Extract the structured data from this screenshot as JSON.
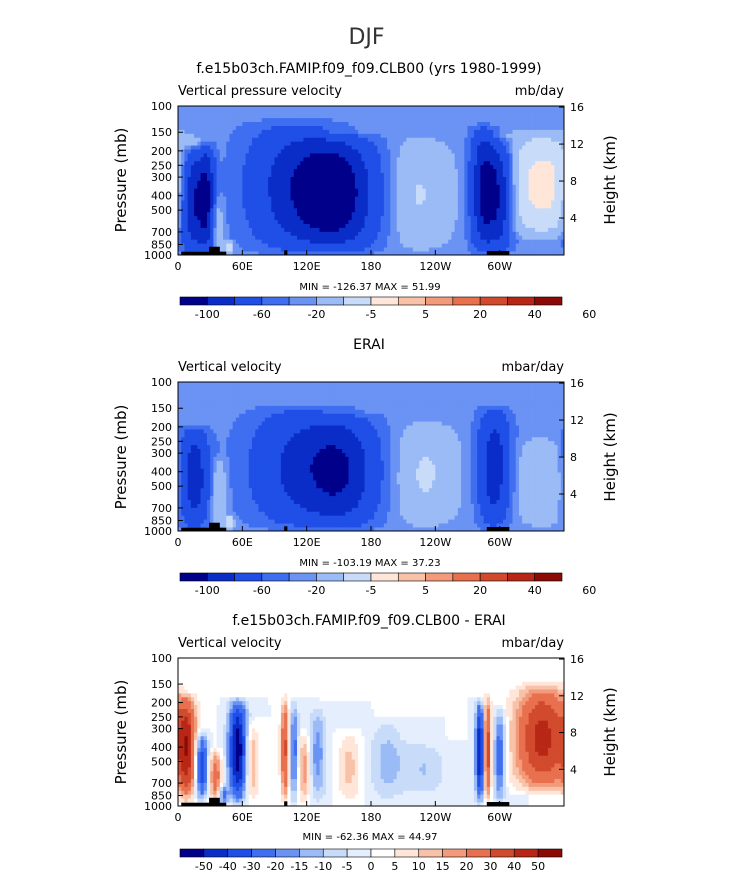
{
  "figure_title": "DJF",
  "chart_data": [
    {
      "type": "heatmap",
      "title": "f.e15b03ch.FAMIP.f09_f09.CLB00 (yrs 1980-1999)",
      "left_label": "Vertical pressure velocity",
      "right_label": "mb/day",
      "ylabel": "Pressure (mb)",
      "y2label": "Height (km)",
      "y_ticks": [
        100,
        150,
        200,
        250,
        300,
        400,
        500,
        700,
        850,
        1000
      ],
      "y2_ticks": [
        4,
        8,
        12,
        16
      ],
      "x_ticks": [
        "0",
        "60E",
        "120E",
        "180",
        "120W",
        "60W"
      ],
      "x_tick_values": [
        0,
        60,
        120,
        180,
        240,
        300
      ],
      "xlim": [
        0,
        360
      ],
      "ylim": [
        1000,
        100
      ],
      "y_scale": "log",
      "stats": "MIN = -126.37   MAX =  51.99",
      "colorbar_labels": [
        "-100",
        "-60",
        "-20",
        "-5",
        "5",
        "20",
        "40",
        "60"
      ],
      "colorbar_colors": [
        "#00008b",
        "#0a2dc8",
        "#1f4fe6",
        "#3f6ff0",
        "#6a93f4",
        "#9bbbf6",
        "#c8dcfa",
        "#ffe6d8",
        "#f8c2a8",
        "#f29a7a",
        "#e8704e",
        "#d24a2e",
        "#b82716",
        "#8c0a06"
      ],
      "features": [
        {
          "lon": 15,
          "amp": -110,
          "width": 8,
          "base": 1000,
          "top": 180
        },
        {
          "lon": 27,
          "amp": -90,
          "width": 5,
          "base": 1000,
          "top": 170
        },
        {
          "lon": 36,
          "amp": 25,
          "width": 4,
          "base": 1000,
          "top": 380
        },
        {
          "lon": 47,
          "amp": 40,
          "width": 3,
          "base": 1000,
          "top": 780
        },
        {
          "lon": 110,
          "amp": -80,
          "width": 30,
          "base": 1000,
          "top": 120
        },
        {
          "lon": 150,
          "amp": -110,
          "width": 25,
          "base": 1000,
          "top": 150
        },
        {
          "lon": 222,
          "amp": 22,
          "width": 24,
          "base": 1000,
          "top": 150
        },
        {
          "lon": 285,
          "amp": -110,
          "width": 8,
          "base": 1000,
          "top": 130
        },
        {
          "lon": 300,
          "amp": -90,
          "width": 8,
          "base": 1000,
          "top": 160
        },
        {
          "lon": 340,
          "amp": 48,
          "width": 24,
          "base": 800,
          "top": 140
        }
      ],
      "topography": [
        {
          "lon0": 3,
          "lon1": 45,
          "p": 950
        },
        {
          "lon0": 29,
          "lon1": 39,
          "p": 880
        },
        {
          "lon0": 99,
          "lon1": 102,
          "p": 930
        },
        {
          "lon0": 288,
          "lon1": 309,
          "p": 940
        }
      ]
    },
    {
      "type": "heatmap",
      "title": "ERAI",
      "left_label": "Vertical velocity",
      "right_label": "mbar/day",
      "ylabel": "Pressure (mb)",
      "y2label": "Height (km)",
      "y_ticks": [
        100,
        150,
        200,
        250,
        300,
        400,
        500,
        700,
        850,
        1000
      ],
      "y2_ticks": [
        4,
        8,
        12,
        16
      ],
      "x_ticks": [
        "0",
        "60E",
        "120E",
        "180",
        "120W",
        "60W"
      ],
      "x_tick_values": [
        0,
        60,
        120,
        180,
        240,
        300
      ],
      "xlim": [
        0,
        360
      ],
      "ylim": [
        1000,
        100
      ],
      "y_scale": "log",
      "stats": "MIN = -103.19   MAX =  37.23",
      "colorbar_labels": [
        "-100",
        "-60",
        "-20",
        "-5",
        "5",
        "20",
        "40",
        "60"
      ],
      "colorbar_colors": [
        "#00008b",
        "#0a2dc8",
        "#1f4fe6",
        "#3f6ff0",
        "#6a93f4",
        "#9bbbf6",
        "#c8dcfa",
        "#ffe6d8",
        "#f8c2a8",
        "#f29a7a",
        "#e8704e",
        "#d24a2e",
        "#b82716",
        "#8c0a06"
      ],
      "features": [
        {
          "lon": 15,
          "amp": -90,
          "width": 9,
          "base": 1000,
          "top": 190
        },
        {
          "lon": 38,
          "amp": 25,
          "width": 5,
          "base": 1000,
          "top": 300
        },
        {
          "lon": 48,
          "amp": 35,
          "width": 3,
          "base": 1000,
          "top": 760
        },
        {
          "lon": 118,
          "amp": -75,
          "width": 32,
          "base": 1000,
          "top": 140
        },
        {
          "lon": 155,
          "amp": -70,
          "width": 22,
          "base": 1000,
          "top": 160
        },
        {
          "lon": 230,
          "amp": 22,
          "width": 22,
          "base": 1000,
          "top": 170
        },
        {
          "lon": 295,
          "amp": -85,
          "width": 10,
          "base": 1000,
          "top": 140
        },
        {
          "lon": 340,
          "amp": 18,
          "width": 22,
          "base": 1000,
          "top": 220
        }
      ],
      "topography": [
        {
          "lon0": 3,
          "lon1": 45,
          "p": 950
        },
        {
          "lon0": 29,
          "lon1": 39,
          "p": 880
        },
        {
          "lon0": 99,
          "lon1": 102,
          "p": 930
        },
        {
          "lon0": 288,
          "lon1": 309,
          "p": 940
        }
      ]
    },
    {
      "type": "heatmap",
      "title": "f.e15b03ch.FAMIP.f09_f09.CLB00 - ERAI",
      "left_label": "Vertical velocity",
      "right_label": "mbar/day",
      "ylabel": "Pressure (mb)",
      "y2label": "Height (km)",
      "y_ticks": [
        100,
        150,
        200,
        250,
        300,
        400,
        500,
        700,
        850,
        1000
      ],
      "y2_ticks": [
        4,
        8,
        12,
        16
      ],
      "x_ticks": [
        "0",
        "60E",
        "120E",
        "180",
        "120W",
        "60W"
      ],
      "x_tick_values": [
        0,
        60,
        120,
        180,
        240,
        300
      ],
      "xlim": [
        0,
        360
      ],
      "ylim": [
        1000,
        100
      ],
      "y_scale": "log",
      "stats": "MIN = -62.36   MAX =  44.97",
      "colorbar_labels": [
        "-50",
        "-40",
        "-30",
        "-20",
        "-15",
        "-10",
        "-5",
        "0",
        "5",
        "10",
        "15",
        "20",
        "30",
        "40",
        "50"
      ],
      "colorbar_colors": [
        "#00008b",
        "#0a2dc8",
        "#1f4fe6",
        "#3f6ff0",
        "#6a93f4",
        "#9bbbf6",
        "#c8dcfa",
        "#e4eefc",
        "#ffffff",
        "#ffe6d8",
        "#f8c2a8",
        "#f29a7a",
        "#e8704e",
        "#d24a2e",
        "#b82716",
        "#8c0a06"
      ],
      "features": [
        {
          "lon": 8,
          "amp": 38,
          "width": 6,
          "base": 1000,
          "top": 170
        },
        {
          "lon": 22,
          "amp": -40,
          "width": 4,
          "base": 950,
          "top": 300
        },
        {
          "lon": 35,
          "amp": 25,
          "width": 4,
          "base": 1000,
          "top": 400
        },
        {
          "lon": 42,
          "amp": -22,
          "width": 3,
          "base": 1000,
          "top": 700
        },
        {
          "lon": 56,
          "amp": -58,
          "width": 6,
          "base": 1000,
          "top": 180
        },
        {
          "lon": 68,
          "amp": 18,
          "width": 5,
          "base": 1000,
          "top": 250
        },
        {
          "lon": 100,
          "amp": 32,
          "width": 3,
          "base": 1000,
          "top": 170
        },
        {
          "lon": 108,
          "amp": -25,
          "width": 3,
          "base": 1000,
          "top": 180
        },
        {
          "lon": 118,
          "amp": 20,
          "width": 4,
          "base": 1000,
          "top": 300
        },
        {
          "lon": 130,
          "amp": -18,
          "width": 6,
          "base": 1000,
          "top": 200
        },
        {
          "lon": 160,
          "amp": 12,
          "width": 8,
          "base": 1000,
          "top": 300
        },
        {
          "lon": 195,
          "amp": -12,
          "width": 12,
          "base": 1000,
          "top": 250
        },
        {
          "lon": 230,
          "amp": -10,
          "width": 14,
          "base": 900,
          "top": 350
        },
        {
          "lon": 282,
          "amp": -55,
          "width": 3,
          "base": 1000,
          "top": 180
        },
        {
          "lon": 288,
          "amp": 40,
          "width": 3,
          "base": 1000,
          "top": 170
        },
        {
          "lon": 300,
          "amp": -28,
          "width": 4,
          "base": 1000,
          "top": 200
        },
        {
          "lon": 340,
          "amp": 44,
          "width": 18,
          "base": 850,
          "top": 140
        }
      ],
      "topography": [
        {
          "lon0": 3,
          "lon1": 45,
          "p": 950
        },
        {
          "lon0": 29,
          "lon1": 39,
          "p": 880
        },
        {
          "lon0": 99,
          "lon1": 102,
          "p": 930
        },
        {
          "lon0": 288,
          "lon1": 309,
          "p": 940
        }
      ]
    }
  ]
}
